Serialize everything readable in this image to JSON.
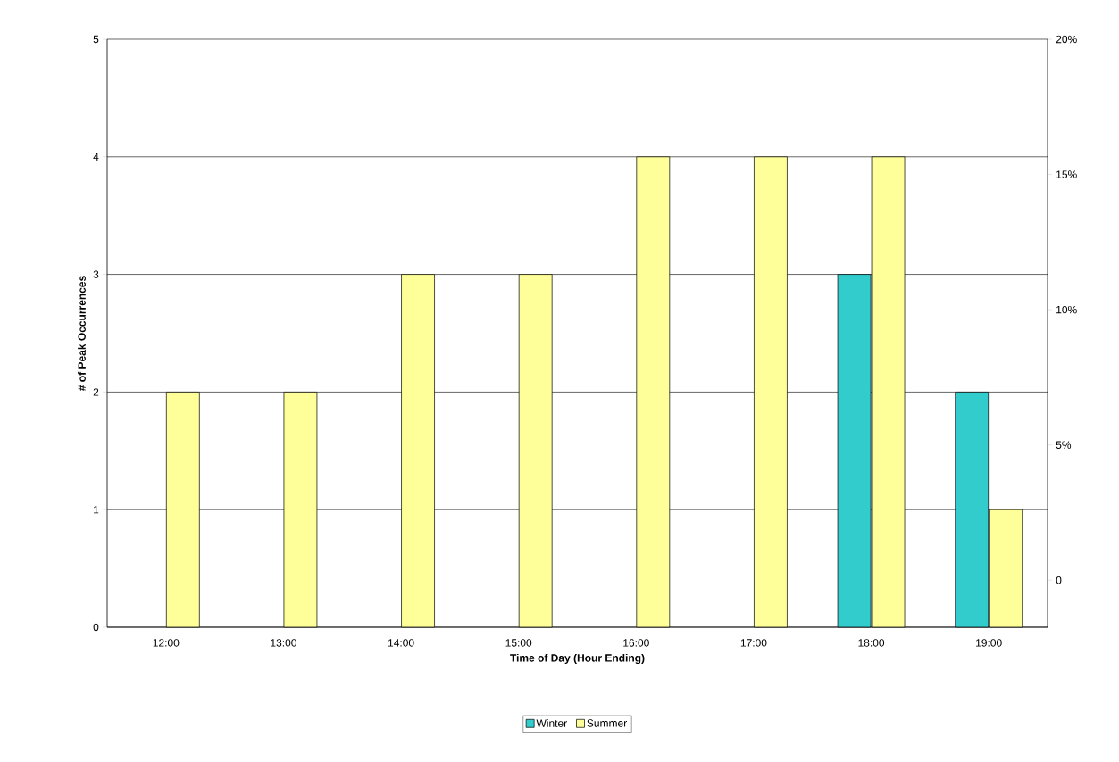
{
  "chart_data": {
    "type": "bar",
    "xlabel": "Time of Day (Hour Ending)",
    "ylabel": "# of Peak Occurrences",
    "categories": [
      "12:00",
      "13:00",
      "14:00",
      "15:00",
      "16:00",
      "17:00",
      "18:00",
      "19:00"
    ],
    "series": [
      {
        "name": "Winter",
        "color": "#33cccc",
        "values": [
          null,
          null,
          null,
          null,
          null,
          null,
          3,
          2
        ]
      },
      {
        "name": "Summer",
        "color": "#ffff99",
        "values": [
          2,
          2,
          3,
          3,
          4,
          4,
          4,
          1
        ]
      }
    ],
    "ylim": [
      0,
      5
    ],
    "yticks": [
      0,
      1,
      2,
      3,
      4,
      5
    ],
    "y2lim": [
      -1.74,
      20
    ],
    "y2ticks": [
      0,
      {
        "value": 5,
        "label": "5%"
      },
      {
        "value": 10,
        "label": "10%"
      },
      {
        "value": 15,
        "label": "15%"
      },
      {
        "value": 20,
        "label": "20%"
      }
    ],
    "grid": "y",
    "legend": "bottom"
  }
}
